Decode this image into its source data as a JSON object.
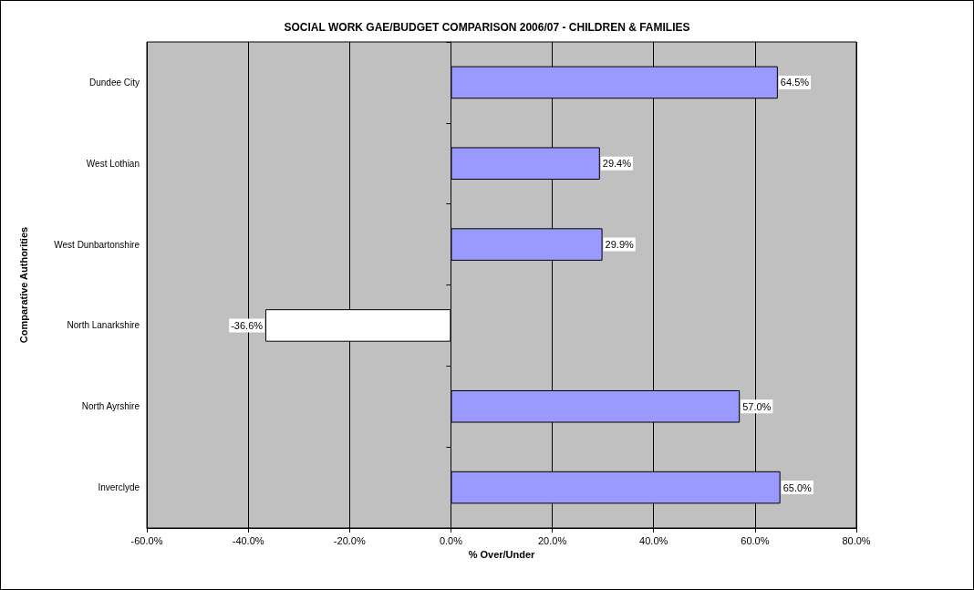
{
  "chart_data": {
    "type": "bar",
    "orientation": "horizontal",
    "title": "SOCIAL WORK GAE/BUDGET COMPARISON 2006/07 - CHILDREN & FAMILIES",
    "xlabel": "% Over/Under",
    "ylabel": "Comparative Authorities",
    "categories": [
      "Dundee City",
      "West Lothian",
      "West Dunbartonshire",
      "North Lanarkshire",
      "North Ayrshire",
      "Inverclyde"
    ],
    "values": [
      64.5,
      29.4,
      29.9,
      -36.6,
      57.0,
      65.0
    ],
    "colors": [
      "#9999ff",
      "#9999ff",
      "#9999ff",
      "#ffffff",
      "#9999ff",
      "#9999ff"
    ],
    "value_labels": [
      "64.5%",
      "29.4%",
      "29.9%",
      "-36.6%",
      "57.0%",
      "65.0%"
    ],
    "xlim": [
      -60,
      80
    ],
    "xticks": [
      {
        "value": -60,
        "label": "-60.0%"
      },
      {
        "value": -40,
        "label": "-40.0%"
      },
      {
        "value": -20,
        "label": "-20.0%"
      },
      {
        "value": 0,
        "label": "0.0%"
      },
      {
        "value": 20,
        "label": "20.0%"
      },
      {
        "value": 40,
        "label": "40.0%"
      },
      {
        "value": 60,
        "label": "60.0%"
      },
      {
        "value": 80,
        "label": "80.0%"
      }
    ],
    "grid": "x"
  }
}
